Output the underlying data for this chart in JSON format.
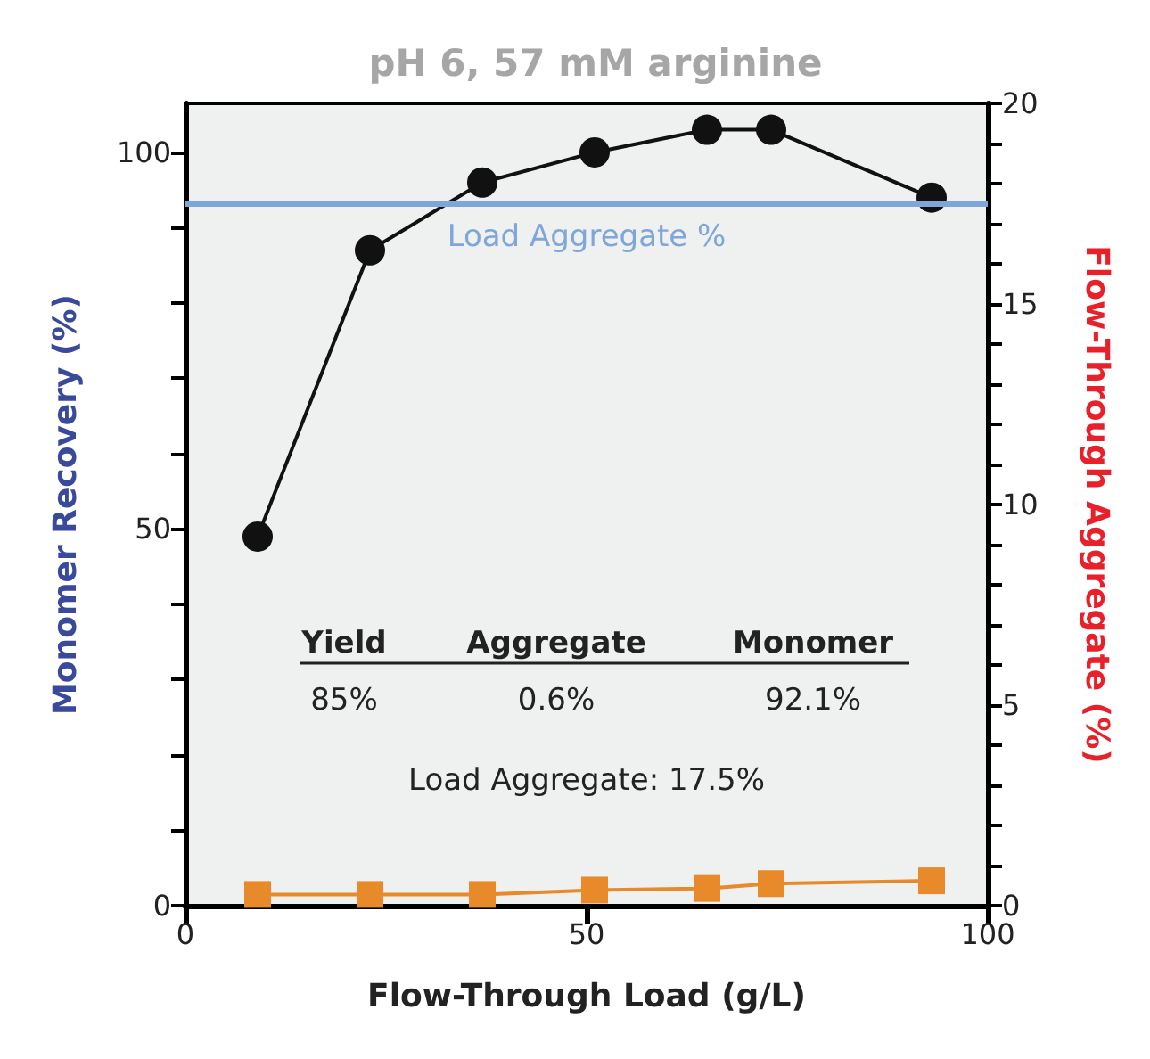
{
  "chart_data": {
    "type": "line",
    "title": "pH 6, 57 mM arginine",
    "xlabel": "Flow-Through Load (g/L)",
    "ylabel": "Monomer Recovery (%)",
    "y2label": "Flow-Through Aggregate (%)",
    "x": [
      9,
      23,
      37,
      51,
      65,
      73,
      93
    ],
    "series": [
      {
        "color": "#111111",
        "marker": "circle",
        "values": [
          49,
          87,
          96,
          100,
          103,
          103,
          94
        ]
      },
      {
        "color": "#e8892a",
        "marker": "square",
        "axis": "y2",
        "values": [
          0.28,
          0.28,
          0.28,
          0.39,
          0.43,
          0.55,
          0.62
        ]
      }
    ],
    "xlim": [
      0,
      100
    ],
    "xticks": [
      0,
      50,
      100
    ],
    "ylim": [
      0,
      106.5
    ],
    "yticks": [
      0,
      {
        "value": 10,
        "label": null
      },
      {
        "value": 20,
        "label": null
      },
      {
        "value": 30,
        "label": null
      },
      {
        "value": 40,
        "label": null
      },
      50,
      {
        "value": 60,
        "label": null
      },
      {
        "value": 70,
        "label": null
      },
      {
        "value": 80,
        "label": null
      },
      {
        "value": 90,
        "label": null
      },
      100
    ],
    "y2lim": [
      0,
      20
    ],
    "y2ticks": [
      0,
      {
        "value": 1,
        "label": null
      },
      {
        "value": 2,
        "label": null
      },
      {
        "value": 3,
        "label": null
      },
      {
        "value": 4,
        "label": null
      },
      5,
      {
        "value": 6,
        "label": null
      },
      {
        "value": 7,
        "label": null
      },
      {
        "value": 8,
        "label": null
      },
      {
        "value": 9,
        "label": null
      },
      10,
      {
        "value": 11,
        "label": null
      },
      {
        "value": 12,
        "label": null
      },
      {
        "value": 13,
        "label": null
      },
      {
        "value": 14,
        "label": null
      },
      15,
      {
        "value": 16,
        "label": null
      },
      {
        "value": 17,
        "label": null
      },
      {
        "value": 18,
        "label": null
      },
      {
        "value": 19,
        "label": null
      },
      20
    ],
    "ref_lines": [
      {
        "axis": "y2",
        "value": 17.5,
        "label": "Load Aggregate %",
        "color": "#7ea6d8"
      }
    ],
    "annotations": [
      "Yield",
      "Aggregate",
      "Monomer",
      "85%",
      "0.6%",
      "92.1%",
      "Load Aggregate: 17.5%"
    ],
    "line_style": "solid"
  }
}
